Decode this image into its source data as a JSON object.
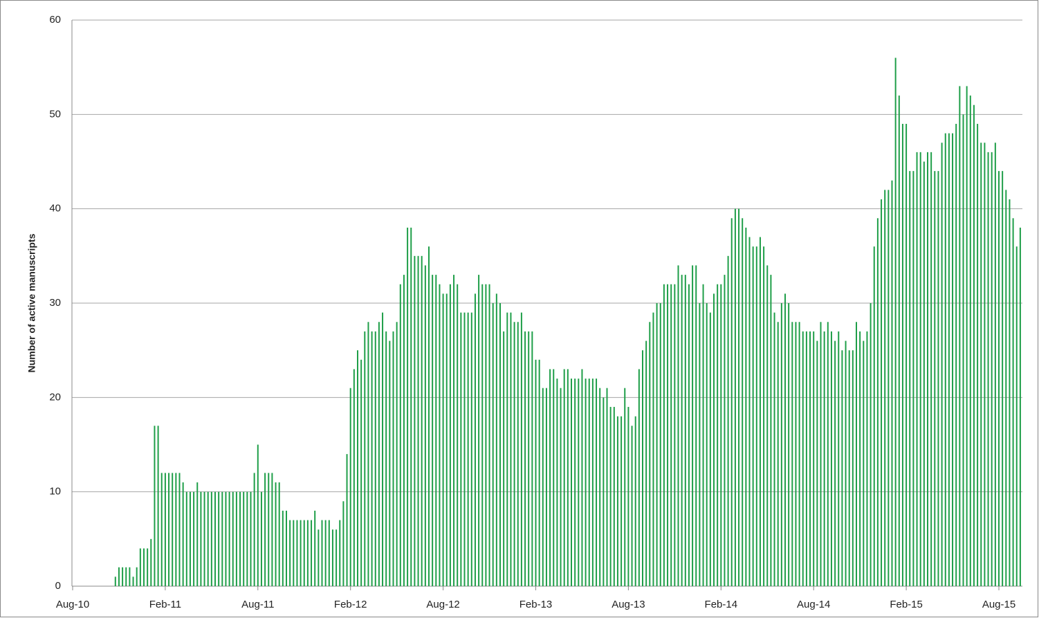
{
  "chart_data": {
    "type": "bar",
    "y_label": "Number of active manuscripts",
    "color": "#1e9e48",
    "ylim": [
      0,
      60
    ],
    "yticks": [
      0,
      10,
      20,
      30,
      40,
      50,
      60
    ],
    "grid": true,
    "categories": [
      "Aug-10",
      null,
      null,
      null,
      null,
      null,
      null,
      null,
      null,
      null,
      null,
      null,
      null,
      null,
      null,
      null,
      null,
      null,
      null,
      null,
      null,
      null,
      null,
      null,
      null,
      null,
      "Feb-11",
      null,
      null,
      null,
      null,
      null,
      null,
      null,
      null,
      null,
      null,
      null,
      null,
      null,
      null,
      null,
      null,
      null,
      null,
      null,
      null,
      null,
      null,
      null,
      null,
      null,
      "Aug-11",
      null,
      null,
      null,
      null,
      null,
      null,
      null,
      null,
      null,
      null,
      null,
      null,
      null,
      null,
      null,
      null,
      null,
      null,
      null,
      null,
      null,
      null,
      null,
      null,
      null,
      "Feb-12",
      null,
      null,
      null,
      null,
      null,
      null,
      null,
      null,
      null,
      null,
      null,
      null,
      null,
      null,
      null,
      null,
      null,
      null,
      null,
      null,
      null,
      null,
      null,
      null,
      null,
      "Aug-12",
      null,
      null,
      null,
      null,
      null,
      null,
      null,
      null,
      null,
      null,
      null,
      null,
      null,
      null,
      null,
      null,
      null,
      null,
      null,
      null,
      null,
      null,
      null,
      null,
      null,
      "Feb-13",
      null,
      null,
      null,
      null,
      null,
      null,
      null,
      null,
      null,
      null,
      null,
      null,
      null,
      null,
      null,
      null,
      null,
      null,
      null,
      null,
      null,
      null,
      null,
      null,
      null,
      "Aug-13",
      null,
      null,
      null,
      null,
      null,
      null,
      null,
      null,
      null,
      null,
      null,
      null,
      null,
      null,
      null,
      null,
      null,
      null,
      null,
      null,
      null,
      null,
      null,
      null,
      null,
      "Feb-14",
      null,
      null,
      null,
      null,
      null,
      null,
      null,
      null,
      null,
      null,
      null,
      null,
      null,
      null,
      null,
      null,
      null,
      null,
      null,
      null,
      null,
      null,
      null,
      null,
      null,
      "Aug-14",
      null,
      null,
      null,
      null,
      null,
      null,
      null,
      null,
      null,
      null,
      null,
      null,
      null,
      null,
      null,
      null,
      null,
      null,
      null,
      null,
      null,
      null,
      null,
      null,
      null,
      "Feb-15",
      null,
      null,
      null,
      null,
      null,
      null,
      null,
      null,
      null,
      null,
      null,
      null,
      null,
      null,
      null,
      null,
      null,
      null,
      null,
      null,
      null,
      null,
      null,
      null,
      null,
      "Aug-15",
      null,
      null,
      null,
      null,
      null,
      null
    ],
    "values": [
      null,
      null,
      null,
      null,
      null,
      null,
      null,
      null,
      null,
      null,
      null,
      null,
      1,
      2,
      2,
      2,
      2,
      1,
      2,
      4,
      4,
      4,
      5,
      17,
      17,
      12,
      12,
      12,
      12,
      12,
      12,
      11,
      10,
      10,
      10,
      11,
      10,
      10,
      10,
      10,
      10,
      10,
      10,
      10,
      10,
      10,
      10,
      10,
      10,
      10,
      10,
      12,
      15,
      10,
      12,
      12,
      12,
      11,
      11,
      8,
      8,
      7,
      7,
      7,
      7,
      7,
      7,
      7,
      8,
      6,
      7,
      7,
      7,
      6,
      6,
      7,
      9,
      14,
      21,
      23,
      25,
      24,
      27,
      28,
      27,
      27,
      28,
      29,
      27,
      26,
      27,
      28,
      32,
      33,
      38,
      38,
      35,
      35,
      35,
      34,
      36,
      33,
      33,
      32,
      31,
      31,
      32,
      33,
      32,
      29,
      29,
      29,
      29,
      31,
      33,
      32,
      32,
      32,
      30,
      31,
      30,
      27,
      29,
      29,
      28,
      28,
      29,
      27,
      27,
      27,
      24,
      24,
      21,
      21,
      23,
      23,
      22,
      21,
      23,
      23,
      22,
      22,
      22,
      23,
      22,
      22,
      22,
      22,
      21,
      20,
      21,
      19,
      19,
      18,
      18,
      21,
      19,
      17,
      18,
      23,
      25,
      26,
      28,
      29,
      30,
      30,
      32,
      32,
      32,
      32,
      34,
      33,
      33,
      32,
      34,
      34,
      30,
      32,
      30,
      29,
      31,
      32,
      32,
      33,
      35,
      39,
      40,
      40,
      39,
      38,
      37,
      36,
      36,
      37,
      36,
      34,
      33,
      29,
      28,
      30,
      31,
      30,
      28,
      28,
      28,
      27,
      27,
      27,
      27,
      26,
      28,
      27,
      28,
      27,
      26,
      27,
      25,
      26,
      25,
      25,
      28,
      27,
      26,
      27,
      30,
      36,
      39,
      41,
      42,
      42,
      43,
      56,
      52,
      49,
      49,
      44,
      44,
      46,
      46,
      45,
      46,
      46,
      44,
      44,
      47,
      48,
      48,
      48,
      49,
      53,
      50,
      53,
      52,
      51,
      49,
      47,
      47,
      46,
      46,
      47,
      44,
      44,
      42,
      41,
      39,
      36,
      38
    ]
  }
}
